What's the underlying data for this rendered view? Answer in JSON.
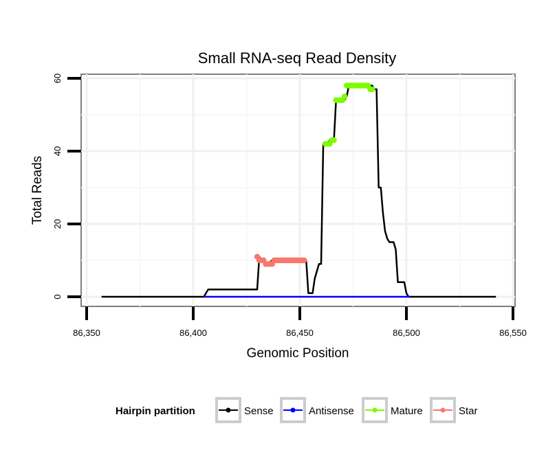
{
  "chart_data": {
    "type": "line",
    "title": "Small RNA-seq Read Density",
    "xlabel": "Genomic Position",
    "ylabel": "Total Reads",
    "xlim": [
      86350,
      86550
    ],
    "ylim": [
      0,
      60
    ],
    "x_ticks": [
      86350,
      86400,
      86450,
      86500,
      86550
    ],
    "x_tick_labels": [
      "86,350",
      "86,400",
      "86,450",
      "86,500",
      "86,550"
    ],
    "y_ticks": [
      0,
      20,
      40,
      60
    ],
    "y_tick_labels": [
      "0",
      "20",
      "40",
      "60"
    ],
    "grid": true,
    "legend": {
      "title": "Hairpin partition",
      "position": "bottom",
      "entries": [
        {
          "name": "Sense",
          "color": "#000000"
        },
        {
          "name": "Antisense",
          "color": "#0000ff"
        },
        {
          "name": "Mature",
          "color": "#7cfc00"
        },
        {
          "name": "Star",
          "color": "#f8766d"
        }
      ]
    },
    "series": [
      {
        "name": "Sense",
        "color": "#000000",
        "mode": "line",
        "x": [
          86357,
          86405,
          86407,
          86430,
          86431,
          86432,
          86433,
          86435,
          86437,
          86453,
          86454,
          86456,
          86457,
          86458,
          86459,
          86460,
          86461,
          86462,
          86463,
          86464,
          86465,
          86466,
          86467,
          86468,
          86469,
          86470,
          86471,
          86472,
          86473,
          86474,
          86475,
          86476,
          86484,
          86485,
          86486,
          86487,
          86488,
          86489,
          86490,
          86491,
          86492,
          86493,
          86494,
          86495,
          86496,
          86497,
          86498,
          86499,
          86500,
          86501,
          86502,
          86542
        ],
        "values": [
          0,
          0,
          2,
          2,
          11,
          10,
          10,
          9,
          10,
          10,
          1,
          1,
          5,
          7,
          9,
          9,
          42,
          42,
          42,
          43,
          43,
          43,
          54,
          54,
          54,
          54,
          54,
          55,
          58,
          58,
          58,
          58,
          58,
          57,
          57,
          30,
          30,
          23,
          18,
          16,
          15,
          15,
          15,
          13,
          4,
          4,
          4,
          4,
          1,
          0,
          0,
          0
        ]
      },
      {
        "name": "Antisense",
        "color": "#0000ff",
        "mode": "line",
        "x": [
          86405,
          86502
        ],
        "values": [
          0,
          0
        ]
      },
      {
        "name": "Mature",
        "color": "#7cfc00",
        "mode": "points",
        "x": [
          86462,
          86463,
          86464,
          86465,
          86466,
          86467,
          86468,
          86469,
          86470,
          86471,
          86472,
          86473,
          86474,
          86475,
          86476,
          86477,
          86478,
          86479,
          86480,
          86481,
          86482,
          86483,
          86484
        ],
        "values": [
          42,
          42,
          42,
          43,
          43,
          54,
          54,
          54,
          54,
          55,
          58,
          58,
          58,
          58,
          58,
          58,
          58,
          58,
          58,
          58,
          58,
          57,
          57
        ]
      },
      {
        "name": "Star",
        "color": "#f8766d",
        "mode": "points",
        "x": [
          86430,
          86431,
          86432,
          86433,
          86434,
          86435,
          86436,
          86437,
          86438,
          86439,
          86440,
          86441,
          86442,
          86443,
          86444,
          86445,
          86446,
          86447,
          86448,
          86449,
          86450,
          86451,
          86452
        ],
        "values": [
          11,
          10,
          10,
          10,
          9,
          9,
          9,
          9,
          10,
          10,
          10,
          10,
          10,
          10,
          10,
          10,
          10,
          10,
          10,
          10,
          10,
          10,
          10
        ]
      }
    ]
  }
}
